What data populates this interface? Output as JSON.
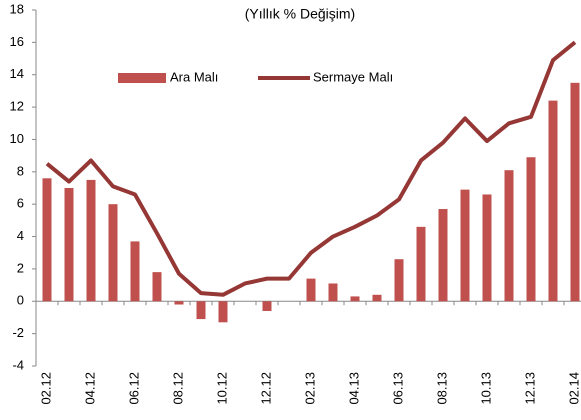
{
  "chart_data": {
    "type": "bar_line",
    "title": "(Yıllık % Değişim)",
    "categories": [
      "02.12",
      null,
      "04.12",
      null,
      "06.12",
      null,
      "08.12",
      null,
      "10.12",
      null,
      "12.12",
      null,
      "02.13",
      null,
      "04.13",
      null,
      "06.13",
      null,
      "08.13",
      null,
      "10.13",
      null,
      "12.13",
      null,
      "02.14"
    ],
    "series": [
      {
        "name": "Ara Malı",
        "type": "bar",
        "color": "#c0504d",
        "values": [
          7.6,
          7.0,
          7.5,
          6.0,
          3.7,
          1.8,
          -0.2,
          -1.1,
          -1.3,
          0.0,
          -0.6,
          0.0,
          1.4,
          1.1,
          0.3,
          0.4,
          2.6,
          4.6,
          5.7,
          6.9,
          6.6,
          8.1,
          8.9,
          12.4,
          13.5
        ]
      },
      {
        "name": "Sermaye Malı",
        "type": "line",
        "color": "#953735",
        "values": [
          8.5,
          7.4,
          8.7,
          7.1,
          6.6,
          4.2,
          1.7,
          0.5,
          0.4,
          1.1,
          1.4,
          1.4,
          3.0,
          4.0,
          4.6,
          5.3,
          6.3,
          8.7,
          9.8,
          11.3,
          9.9,
          11.0,
          11.4,
          14.9,
          16.0
        ]
      }
    ],
    "ylim": [
      -4,
      18
    ],
    "yticks": [
      -4,
      -2,
      0,
      2,
      4,
      6,
      8,
      10,
      12,
      14,
      16,
      18
    ],
    "grid": false,
    "legend": "top"
  }
}
